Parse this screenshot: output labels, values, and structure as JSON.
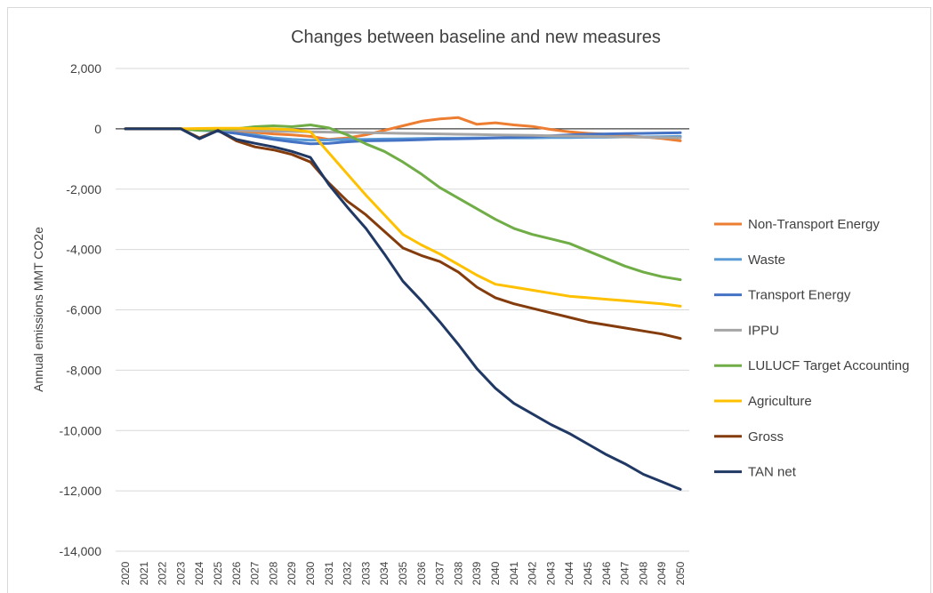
{
  "chart_data": {
    "type": "line",
    "title": "Changes between baseline and new measures",
    "xlabel": "",
    "ylabel": "Annual emissions MMT CO2e",
    "ylim": [
      -14000,
      2000
    ],
    "y_ticks": [
      "2,000",
      "0",
      "-2,000",
      "-4,000",
      "-6,000",
      "-8,000",
      "-10,000",
      "-12,000",
      "-14,000"
    ],
    "grid": "horizontal",
    "legend_position": "right",
    "x": [
      "2020",
      "2021",
      "2022",
      "2023",
      "2024",
      "2025",
      "2026",
      "2027",
      "2028",
      "2029",
      "2030",
      "2031",
      "2032",
      "2033",
      "2034",
      "2035",
      "2036",
      "2037",
      "2038",
      "2039",
      "2040",
      "2041",
      "2042",
      "2043",
      "2044",
      "2045",
      "2046",
      "2047",
      "2048",
      "2049",
      "2050"
    ],
    "series": [
      {
        "name": "Non-Transport Energy",
        "color": "#ed7d31",
        "values": [
          0,
          0,
          0,
          0,
          -20,
          -40,
          -80,
          -120,
          -170,
          -200,
          -250,
          -350,
          -300,
          -200,
          -50,
          100,
          250,
          330,
          370,
          150,
          200,
          130,
          80,
          -20,
          -100,
          -150,
          -180,
          -230,
          -270,
          -320,
          -400
        ]
      },
      {
        "name": "Waste",
        "color": "#5b9bd5",
        "values": [
          0,
          0,
          0,
          0,
          -50,
          -80,
          -150,
          -200,
          -300,
          -350,
          -380,
          -370,
          -350,
          -350,
          -340,
          -330,
          -320,
          -310,
          -310,
          -300,
          -300,
          -300,
          -300,
          -290,
          -290,
          -280,
          -280,
          -270,
          -270,
          -260,
          -250
        ]
      },
      {
        "name": "Transport Energy",
        "color": "#4472c4",
        "values": [
          0,
          0,
          0,
          0,
          -20,
          -80,
          -150,
          -250,
          -350,
          -430,
          -500,
          -480,
          -430,
          -400,
          -390,
          -380,
          -360,
          -340,
          -330,
          -320,
          -300,
          -280,
          -260,
          -230,
          -200,
          -180,
          -170,
          -160,
          -150,
          -140,
          -130
        ]
      },
      {
        "name": "IPPU",
        "color": "#a5a5a5",
        "values": [
          0,
          0,
          0,
          0,
          -20,
          -30,
          -50,
          -70,
          -80,
          -90,
          -100,
          -110,
          -120,
          -130,
          -140,
          -150,
          -160,
          -170,
          -180,
          -190,
          -200,
          -210,
          -220,
          -230,
          -240,
          -250,
          -260,
          -270,
          -280,
          -290,
          -300
        ]
      },
      {
        "name": "LULUCF Target Accounting",
        "color": "#70ad47",
        "values": [
          0,
          0,
          0,
          0,
          -50,
          -30,
          0,
          70,
          100,
          70,
          130,
          30,
          -200,
          -500,
          -750,
          -1100,
          -1500,
          -1950,
          -2300,
          -2650,
          -3000,
          -3300,
          -3500,
          -3650,
          -3800,
          -4050,
          -4300,
          -4550,
          -4750,
          -4900,
          -5000
        ]
      },
      {
        "name": "Agriculture",
        "color": "#ffc000",
        "values": [
          0,
          0,
          0,
          0,
          10,
          20,
          20,
          10,
          0,
          -30,
          -100,
          -800,
          -1500,
          -2200,
          -2850,
          -3500,
          -3850,
          -4150,
          -4500,
          -4850,
          -5150,
          -5250,
          -5350,
          -5450,
          -5550,
          -5600,
          -5650,
          -5700,
          -5750,
          -5800,
          -5880
        ]
      },
      {
        "name": "Gross",
        "color": "#843c0c",
        "values": [
          0,
          0,
          0,
          0,
          -300,
          -50,
          -400,
          -600,
          -700,
          -850,
          -1100,
          -1800,
          -2400,
          -2850,
          -3400,
          -3950,
          -4200,
          -4400,
          -4750,
          -5250,
          -5600,
          -5800,
          -5950,
          -6100,
          -6250,
          -6400,
          -6500,
          -6600,
          -6700,
          -6800,
          -6950
        ]
      },
      {
        "name": "TAN net",
        "color": "#203864",
        "values": [
          0,
          0,
          0,
          0,
          -330,
          -60,
          -350,
          -480,
          -600,
          -750,
          -950,
          -1850,
          -2600,
          -3300,
          -4150,
          -5050,
          -5700,
          -6400,
          -7150,
          -7950,
          -8600,
          -9100,
          -9450,
          -9800,
          -10100,
          -10450,
          -10800,
          -11100,
          -11450,
          -11700,
          -11950
        ]
      }
    ]
  }
}
